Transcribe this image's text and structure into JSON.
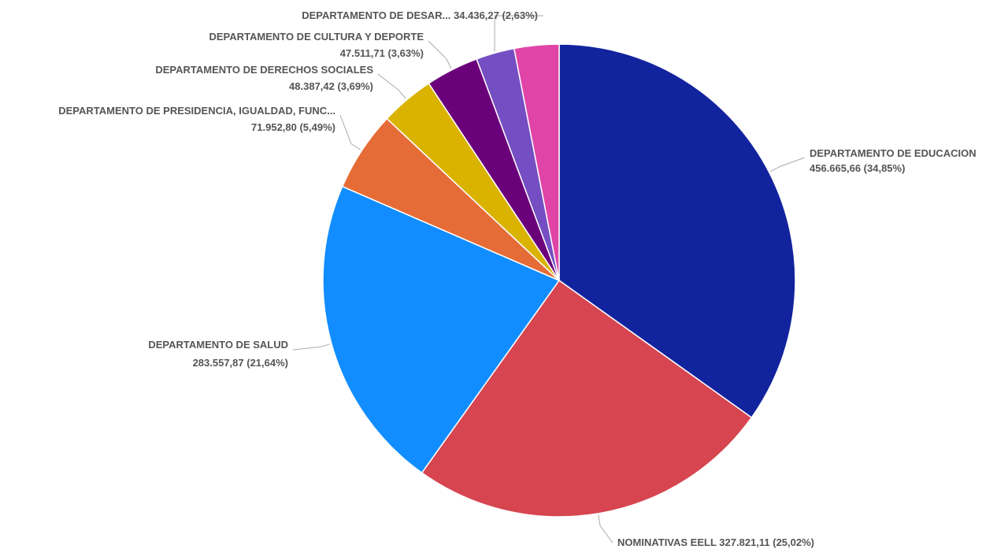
{
  "chart_data": {
    "type": "pie",
    "title": "",
    "slices": [
      {
        "label": "DEPARTAMENTO DE EDUCACION",
        "display_label": "DEPARTAMENTO DE EDUCACION",
        "value": 456665.66,
        "value_text": "456.665,66",
        "percent_text": "34,85%",
        "color": "#12239e"
      },
      {
        "label": "NOMINATIVAS EELL",
        "display_label": "NOMINATIVAS EELL",
        "value": 327821.11,
        "value_text": "327.821,11",
        "percent_text": "25,02%",
        "color": "#d64550"
      },
      {
        "label": "DEPARTAMENTO DE SALUD",
        "display_label": "DEPARTAMENTO DE SALUD",
        "value": 283557.87,
        "value_text": "283.557,87",
        "percent_text": "21,64%",
        "color": "#118dff"
      },
      {
        "label": "DEPARTAMENTO DE PRESIDENCIA, IGUALDAD, FUNC...",
        "display_label": "DEPARTAMENTO DE PRESIDENCIA, IGUALDAD, FUNC...",
        "value": 71952.8,
        "value_text": "71.952,80",
        "percent_text": "5,49%",
        "color": "#e66c37"
      },
      {
        "label": "DEPARTAMENTO DE DERECHOS SOCIALES",
        "display_label": "DEPARTAMENTO DE DERECHOS SOCIALES",
        "value": 48387.42,
        "value_text": "48.387,42",
        "percent_text": "3,69%",
        "color": "#d9b300"
      },
      {
        "label": "DEPARTAMENTO DE CULTURA Y DEPORTE",
        "display_label": "DEPARTAMENTO DE CULTURA Y DEPORTE",
        "value": 47511.71,
        "value_text": "47.511,71",
        "percent_text": "3,63%",
        "color": "#6b007b"
      },
      {
        "label": "DEPARTAMENTO DE DESAR...",
        "display_label": "DEPARTAMENTO DE DESAR...",
        "value": 34436.27,
        "value_text": "34.436,27",
        "percent_text": "2,63%",
        "color": "#744ec2"
      },
      {
        "label": "",
        "display_label": "",
        "value": 40000,
        "value_text": "",
        "percent_text": "",
        "color": "#e044a7"
      }
    ],
    "legend": "none"
  }
}
